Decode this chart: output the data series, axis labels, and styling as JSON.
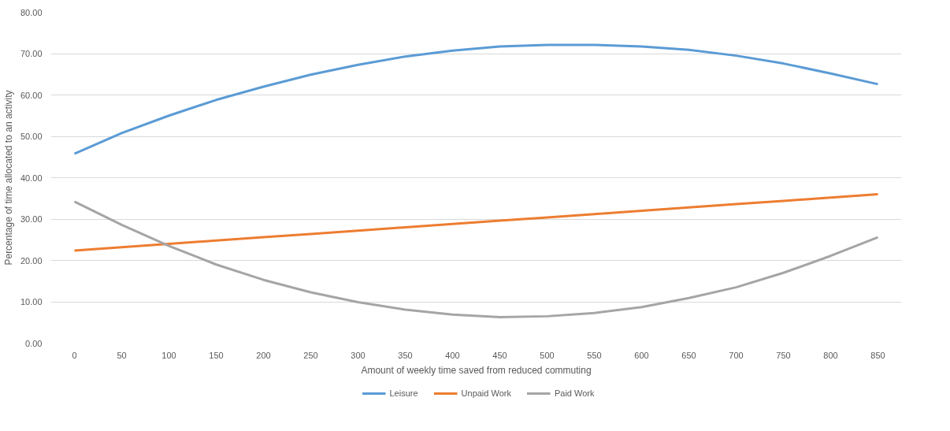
{
  "chart_data": {
    "type": "line",
    "xlabel": "Amount of weekly time saved from reduced commuting",
    "ylabel": "Percentage of time allocated to an activity",
    "categories": [
      "0",
      "50",
      "100",
      "150",
      "200",
      "250",
      "300",
      "350",
      "400",
      "450",
      "500",
      "550",
      "600",
      "650",
      "700",
      "750",
      "800",
      "850"
    ],
    "series": [
      {
        "name": "Leisure",
        "color": "#5b9bd5",
        "values": [
          45.8,
          50.8,
          55.0,
          58.8,
          62.0,
          64.9,
          67.3,
          69.3,
          70.7,
          71.7,
          72.1,
          72.1,
          71.7,
          70.9,
          69.5,
          67.6,
          65.2,
          62.6
        ]
      },
      {
        "name": "Unpaid Work",
        "color": "#ed7d31",
        "values": [
          22.4,
          23.2,
          24.0,
          24.8,
          25.6,
          26.4,
          27.2,
          28.0,
          28.8,
          29.6,
          30.4,
          31.2,
          32.0,
          32.8,
          33.6,
          34.4,
          35.2,
          36.0
        ]
      },
      {
        "name": "Paid Work",
        "color": "#a5a5a5",
        "values": [
          34.2,
          28.6,
          23.5,
          19.0,
          15.3,
          12.3,
          9.9,
          8.1,
          6.9,
          6.3,
          6.5,
          7.3,
          8.7,
          10.9,
          13.5,
          17.0,
          21.1,
          25.6
        ]
      }
    ],
    "ylim": [
      0,
      80
    ],
    "yticks": [
      {
        "value": 0,
        "label": "0.00"
      },
      {
        "value": 10,
        "label": "10.00"
      },
      {
        "value": 20,
        "label": "20.00"
      },
      {
        "value": 30,
        "label": "30.00"
      },
      {
        "value": 40,
        "label": "40.00"
      },
      {
        "value": 50,
        "label": "50.00"
      },
      {
        "value": 60,
        "label": "60.00"
      },
      {
        "value": 70,
        "label": "70.00"
      },
      {
        "value": 80,
        "label": "80.00"
      }
    ],
    "grid": "y",
    "legend": "bottom",
    "marker": "none",
    "line_style": "solid"
  }
}
